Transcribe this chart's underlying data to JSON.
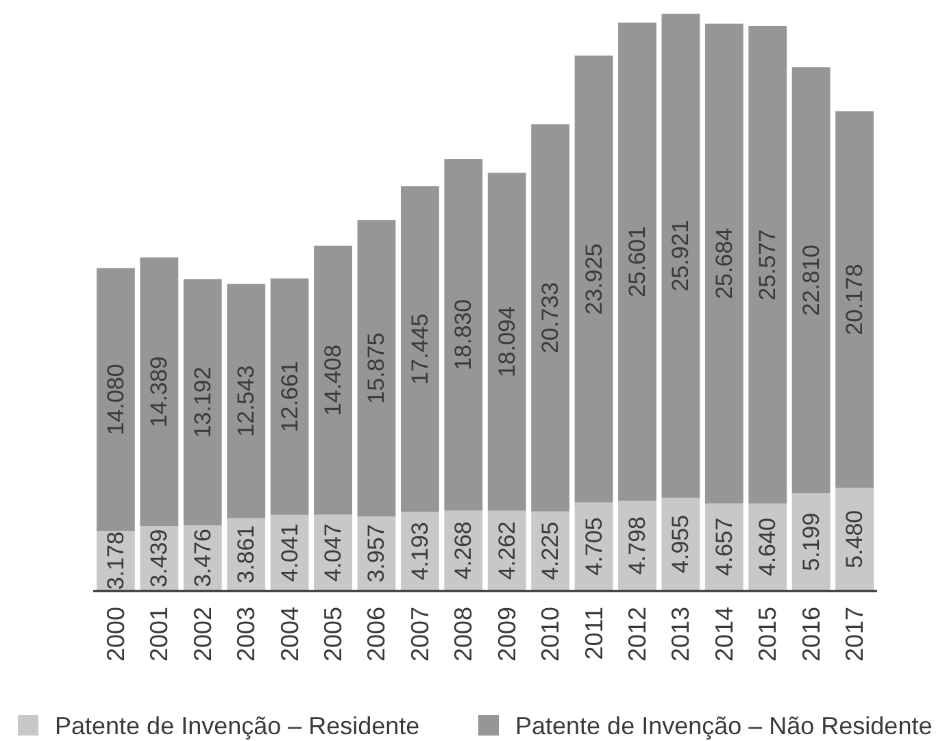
{
  "chart_data": {
    "type": "bar",
    "stacked": true,
    "tick_labels": "x",
    "legend": "bottom",
    "categories": [
      "2000",
      "2001",
      "2002",
      "2003",
      "2004",
      "2005",
      "2006",
      "2007",
      "2008",
      "2009",
      "2010",
      "2011",
      "2012",
      "2013",
      "2014",
      "2015",
      "2016",
      "2017"
    ],
    "series": [
      {
        "name": "Patente de Invenção – Residente",
        "color": "#c8c8c8",
        "values": [
          3178,
          3439,
          3476,
          3861,
          4041,
          4047,
          3957,
          4193,
          4268,
          4262,
          4225,
          4705,
          4798,
          4955,
          4657,
          4640,
          5199,
          5480
        ],
        "value_labels": [
          "3.178",
          "3.439",
          "3.476",
          "3.861",
          "4.041",
          "4.047",
          "3.957",
          "4.193",
          "4.268",
          "4.262",
          "4.225",
          "4.705",
          "4.798",
          "4.955",
          "4.657",
          "4.640",
          "5.199",
          "5.480"
        ]
      },
      {
        "name": "Patente de Invenção – Não Residente",
        "color": "#969696",
        "values": [
          14080,
          14389,
          13192,
          12543,
          12661,
          14408,
          15875,
          17445,
          18830,
          18094,
          20733,
          23925,
          25601,
          25921,
          25684,
          25577,
          22810,
          20178
        ],
        "value_labels": [
          "14.080",
          "14.389",
          "13.192",
          "12.543",
          "12.661",
          "14.408",
          "15.875",
          "17.445",
          "18.830",
          "18.094",
          "20.733",
          "23.925",
          "25.601",
          "25.921",
          "25.684",
          "25.577",
          "22.810",
          "20.178"
        ]
      }
    ]
  }
}
